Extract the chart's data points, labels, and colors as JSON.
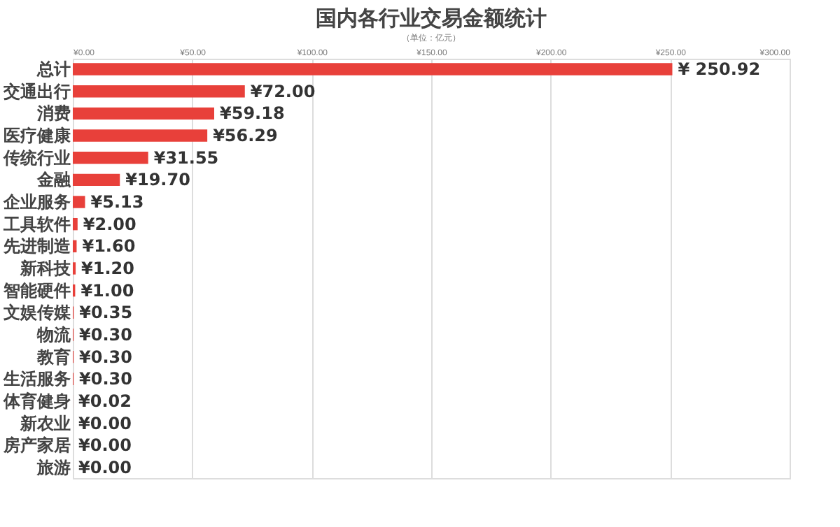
{
  "chart_data": {
    "type": "bar",
    "orientation": "horizontal",
    "title": "国内各行业交易金额统计",
    "subtitle": "（单位：亿元）",
    "categories": [
      "总计",
      "交通出行",
      "消费",
      "医疗健康",
      "传统行业",
      "金融",
      "企业服务",
      "工具软件",
      "先进制造",
      "新科技",
      "智能硬件",
      "文娱传媒",
      "物流",
      "教育",
      "生活服务",
      "体育健身",
      "新农业",
      "房产家居",
      "旅游"
    ],
    "values": [
      250.92,
      72.0,
      59.18,
      56.29,
      31.55,
      19.7,
      5.13,
      2.0,
      1.6,
      1.2,
      1.0,
      0.35,
      0.3,
      0.3,
      0.3,
      0.02,
      0.0,
      0.0,
      0.0
    ],
    "value_labels": [
      "¥ 250.92",
      "¥72.00",
      "¥59.18",
      "¥56.29",
      "¥31.55",
      "¥19.70",
      "¥5.13",
      "¥2.00",
      "¥1.60",
      "¥1.20",
      "¥1.00",
      "¥0.35",
      "¥0.30",
      "¥0.30",
      "¥0.30",
      "¥0.02",
      "¥0.00",
      "¥0.00",
      "¥0.00"
    ],
    "color": "#e8403a",
    "xlim": [
      0,
      300
    ],
    "xticks": [
      {
        "value": 0,
        "label": "¥0.00"
      },
      {
        "value": 50,
        "label": "¥50.00"
      },
      {
        "value": 100,
        "label": "¥100.00"
      },
      {
        "value": 150,
        "label": "¥150.00"
      },
      {
        "value": 200,
        "label": "¥200.00"
      },
      {
        "value": 250,
        "label": "¥250.00"
      },
      {
        "value": 300,
        "label": "¥300.00"
      }
    ],
    "grid": "x"
  }
}
